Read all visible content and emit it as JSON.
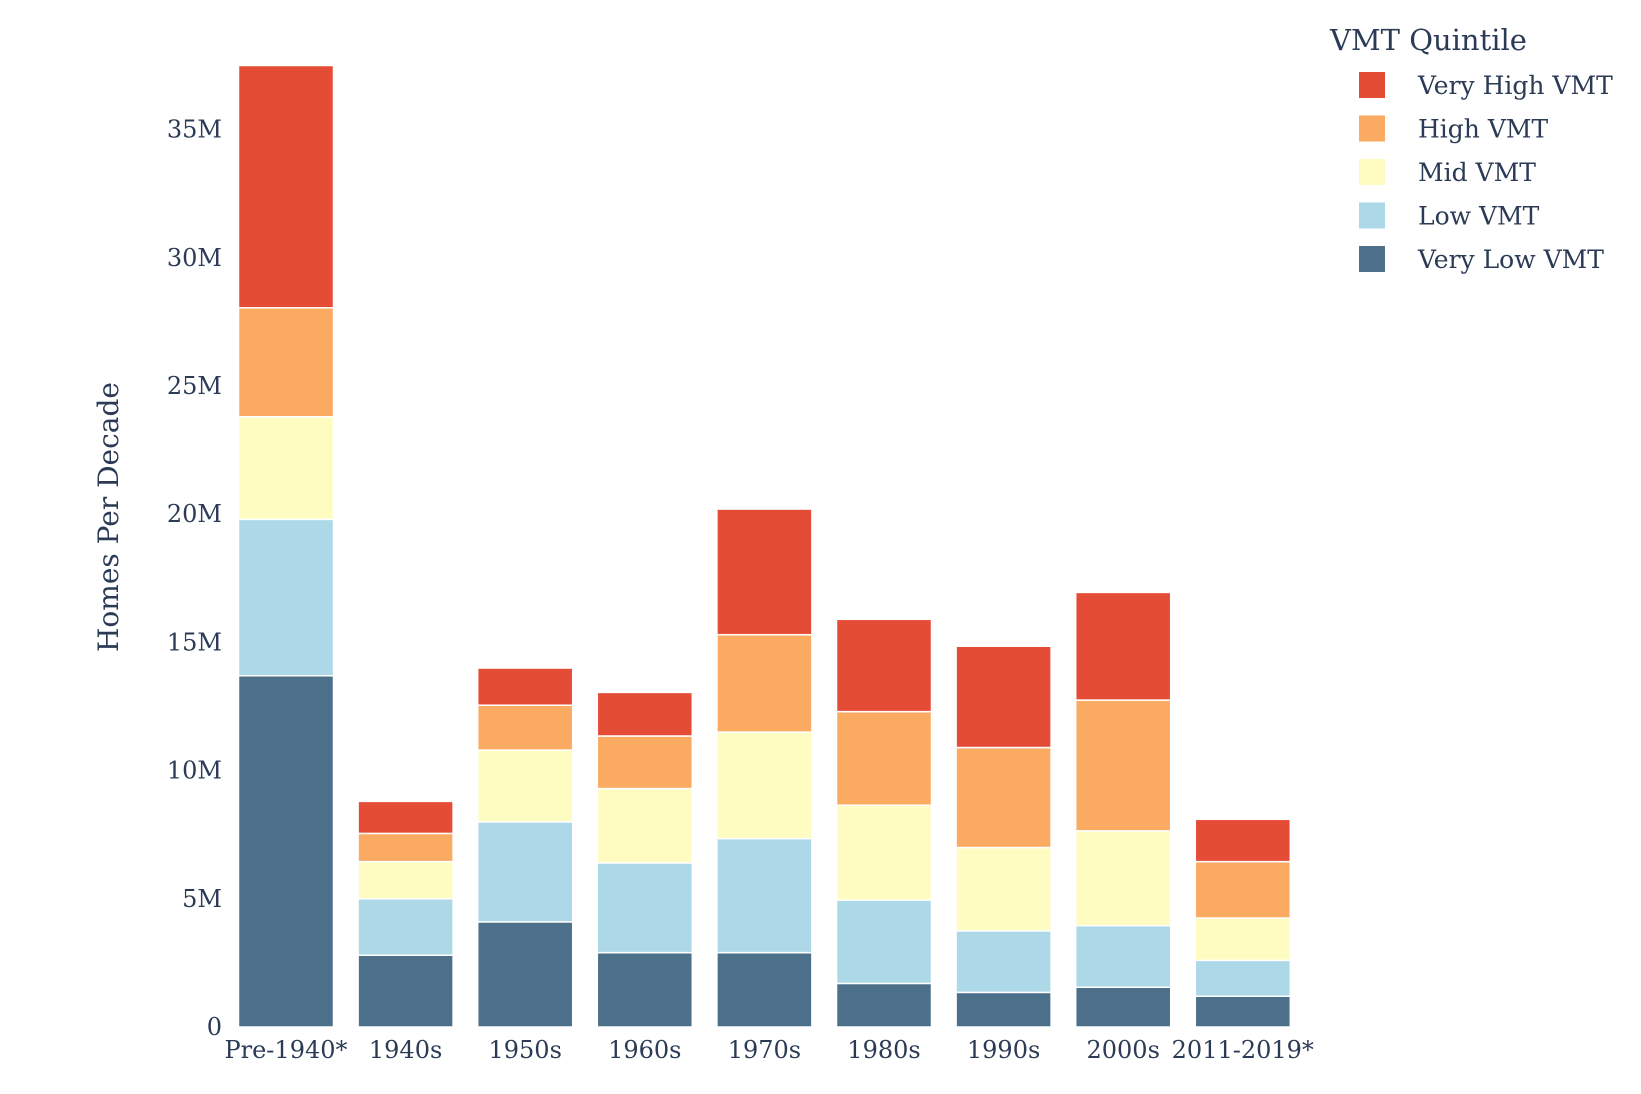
{
  "chart_data": {
    "type": "bar",
    "stacked": true,
    "title": "",
    "xlabel": "",
    "ylabel": "Homes Per Decade",
    "ylim": [
      0,
      37.5
    ],
    "y_ticks": [
      {
        "value": 0,
        "label": "0"
      },
      {
        "value": 5,
        "label": "5M"
      },
      {
        "value": 10,
        "label": "10M"
      },
      {
        "value": 15,
        "label": "15M"
      },
      {
        "value": 20,
        "label": "20M"
      },
      {
        "value": 25,
        "label": "25M"
      },
      {
        "value": 30,
        "label": "30M"
      },
      {
        "value": 35,
        "label": "35M"
      }
    ],
    "grid": false,
    "legend_title": "VMT Quintile",
    "legend_position": "top-right",
    "categories": [
      "Pre-1940*",
      "1940s",
      "1950s",
      "1960s",
      "1970s",
      "1980s",
      "1990s",
      "2000s",
      "2011-2019*"
    ],
    "series": [
      {
        "name": "Very Low VMT",
        "color": "#4c7089",
        "values": [
          13.7,
          2.8,
          4.1,
          2.9,
          2.9,
          1.7,
          1.35,
          1.55,
          1.2
        ]
      },
      {
        "name": "Low VMT",
        "color": "#acd8e8",
        "values": [
          6.1,
          2.2,
          3.9,
          3.5,
          4.45,
          3.25,
          2.4,
          2.4,
          1.4
        ]
      },
      {
        "name": "Mid VMT",
        "color": "#fefcc0",
        "values": [
          4.0,
          1.45,
          2.8,
          2.9,
          4.15,
          3.7,
          3.25,
          3.7,
          1.65
        ]
      },
      {
        "name": "High VMT",
        "color": "#fbaa62",
        "values": [
          4.25,
          1.1,
          1.75,
          2.05,
          3.8,
          3.65,
          3.9,
          5.1,
          2.2
        ]
      },
      {
        "name": "Very High VMT",
        "color": "#e44c36",
        "values": [
          9.45,
          1.25,
          1.45,
          1.7,
          4.9,
          3.6,
          3.95,
          4.2,
          1.65
        ]
      }
    ]
  }
}
